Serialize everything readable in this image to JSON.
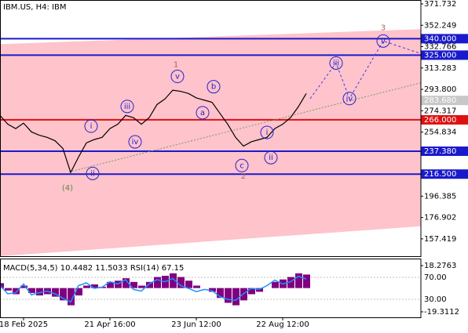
{
  "chart_data": [
    {
      "type": "line",
      "title": "IBM.US, H4:  IBM",
      "color": "#000000",
      "values": [
        270,
        262,
        258,
        263,
        255,
        252,
        250,
        247,
        240,
        218,
        232,
        245,
        248,
        250,
        258,
        262,
        270,
        268,
        262,
        268,
        280,
        285,
        293,
        292,
        290,
        286,
        284,
        282,
        272,
        262,
        250,
        242,
        246,
        248,
        250,
        258,
        262,
        268,
        278,
        290
      ],
      "xlim": [
        0,
        53.6
      ],
      "ylim": [
        141.6,
        375.3
      ],
      "xticks": [
        {
          "value": 3,
          "label": "18 Feb 2025"
        },
        {
          "value": 14,
          "label": "21 Apr 16:00"
        },
        {
          "value": 25,
          "label": "23 Jun 12:00"
        },
        {
          "value": 36,
          "label": "22 Aug 12:00"
        }
      ],
      "yticks": [
        371.732,
        352.249,
        332.766,
        313.283,
        {
          "value": 293.8,
          "label": "293.800"
        },
        274.317,
        254.834,
        196.385,
        176.902,
        157.419
      ],
      "levels": [
        {
          "value": 340,
          "label": "340.000",
          "color": "#1a1acc"
        },
        {
          "value": 325,
          "label": "325.000",
          "color": "#1a1acc"
        },
        {
          "value": 266,
          "label": "266.000",
          "color": "#dd1111"
        },
        {
          "value": 237.38,
          "label": "237.380",
          "color": "#1a1acc"
        },
        {
          "value": 216.5,
          "label": "216.500",
          "color": "#1a1acc"
        }
      ],
      "current_price": {
        "value": 283.68,
        "label": "283.680",
        "color": "#c8c8c8"
      },
      "channel": {
        "x": [
          0,
          53.6
        ],
        "upper": [
          335,
          348.7
        ],
        "lower": [
          141.6,
          168.9
        ],
        "color": "#ffc3cb"
      },
      "trend_line": {
        "x": [
          8.8,
          53.6
        ],
        "y": [
          218.5,
          299.8
        ],
        "color": "#70a060"
      },
      "projection": {
        "x": [
          39.5,
          42.8,
          44.5,
          48.8,
          53.6
        ],
        "y": [
          285.4,
          317.8,
          285.4,
          337.9,
          326.4
        ],
        "color": "#3a3ae0"
      },
      "annotations": [
        {
          "text": "v",
          "x": 22.6,
          "y": 305.6,
          "style": "circle",
          "color": "#2323d0"
        },
        {
          "text": "b",
          "x": 27.2,
          "y": 296.2,
          "style": "circle",
          "color": "#2323d0"
        },
        {
          "text": "a",
          "x": 25.8,
          "y": 272.5,
          "style": "circle",
          "color": "#2323d0"
        },
        {
          "text": "iii",
          "x": 16.2,
          "y": 278.2,
          "style": "circle",
          "color": "#2323d0"
        },
        {
          "text": "iv",
          "x": 17.2,
          "y": 245.9,
          "style": "circle",
          "color": "#2323d0"
        },
        {
          "text": "i",
          "x": 11.6,
          "y": 260.2,
          "style": "circle",
          "color": "#2323d0"
        },
        {
          "text": "ii",
          "x": 11.8,
          "y": 217.1,
          "style": "circle",
          "color": "#2323d0"
        },
        {
          "text": "c",
          "x": 30.8,
          "y": 224.3,
          "style": "circle",
          "color": "#2323d0"
        },
        {
          "text": "i",
          "x": 34,
          "y": 254.5,
          "style": "circle",
          "color": "#2323d0"
        },
        {
          "text": "ii",
          "x": 34.5,
          "y": 231.5,
          "style": "circle",
          "color": "#2323d0"
        },
        {
          "text": "iii",
          "x": 42.8,
          "y": 317.8,
          "style": "circle",
          "color": "#2323d0"
        },
        {
          "text": "iv",
          "x": 44.5,
          "y": 285.4,
          "style": "circle",
          "color": "#2323d0"
        },
        {
          "text": "v",
          "x": 48.8,
          "y": 337.9,
          "style": "circle",
          "color": "#2323d0"
        },
        {
          "text": "1",
          "x": 22.4,
          "y": 316.5,
          "style": "plain",
          "color": "#b86050"
        },
        {
          "text": "2",
          "x": 31,
          "y": 214.4,
          "style": "plain",
          "color": "#b86050"
        },
        {
          "text": "3",
          "x": 48.8,
          "y": 350,
          "style": "plain",
          "color": "#b86050"
        },
        {
          "text": "(4)",
          "x": 8.6,
          "y": 203.6,
          "style": "plain",
          "color": "#5a8a40"
        }
      ]
    },
    {
      "type": "bar",
      "title": "MACD(5,34,5) 10.4482 11.5033 RSI(14) 67.15",
      "xlim": [
        0,
        53.6
      ],
      "ylim": [
        -23.8,
        24.0
      ],
      "yticks": [
        18.2763,
        -19.3112
      ],
      "y2lim": [
        -2.9,
        104.3
      ],
      "y2ticks": [
        {
          "value": 70,
          "label": "70.00"
        },
        {
          "value": 30,
          "label": "30.00"
        }
      ],
      "series": [
        {
          "color": "#800080",
          "values": [
            4,
            -2,
            -5,
            2,
            -4,
            -6,
            -5,
            -7,
            -10,
            -14,
            -6,
            2,
            3,
            1,
            5,
            6,
            8,
            5,
            2,
            5,
            9,
            10,
            12,
            9,
            6,
            2,
            0,
            -3,
            -8,
            -12,
            -14,
            -10,
            -5,
            -3,
            0,
            5,
            7,
            9,
            12,
            11
          ]
        },
        {
          "color": "#1e90ff",
          "axis": "y2",
          "values": [
            55,
            40,
            42,
            58,
            38,
            42,
            45,
            40,
            32,
            25,
            55,
            60,
            50,
            52,
            62,
            58,
            66,
            48,
            45,
            58,
            66,
            62,
            68,
            55,
            50,
            44,
            48,
            46,
            35,
            30,
            28,
            40,
            50,
            48,
            55,
            65,
            58,
            62,
            72,
            67
          ]
        }
      ]
    }
  ]
}
